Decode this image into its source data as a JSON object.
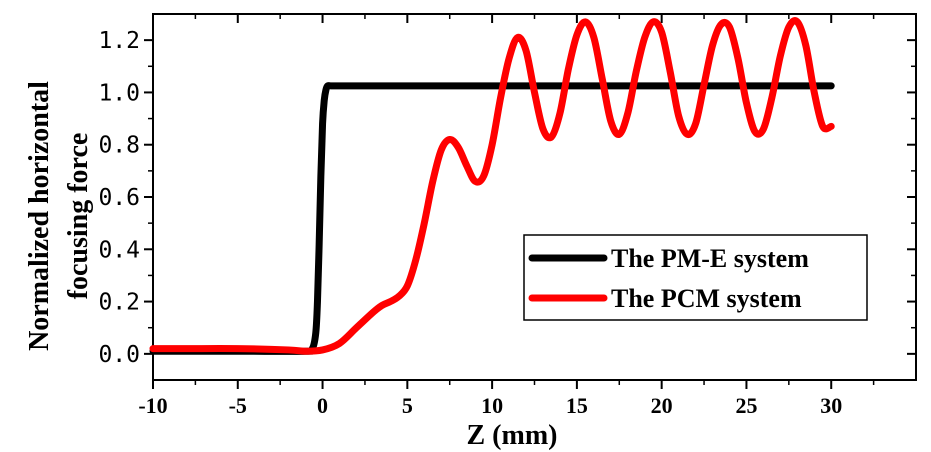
{
  "chart_data": {
    "type": "line",
    "title": "",
    "xlabel": "Z (mm)",
    "ylabel_lines": [
      "Normalized horizontal",
      "focusing force"
    ],
    "xlim": [
      -10,
      35
    ],
    "ylim": [
      -0.1,
      1.3
    ],
    "x_ticks": [
      -10,
      -5,
      0,
      5,
      10,
      15,
      20,
      25,
      30
    ],
    "x_tick_labels": [
      "-10",
      "-5",
      "0",
      "5",
      "10",
      "15",
      "20",
      "25",
      "30"
    ],
    "y_ticks": [
      0.0,
      0.2,
      0.4,
      0.6,
      0.8,
      1.0,
      1.2
    ],
    "y_tick_labels": [
      "0.0",
      "0.2",
      "0.4",
      "0.6",
      "0.8",
      "1.0",
      "1.2"
    ],
    "grid": false,
    "legend_position": "center-right",
    "series": [
      {
        "name": "The PM-E system",
        "color": "#000000",
        "x": [
          -10,
          -5,
          -1,
          -0.6,
          -0.4,
          -0.3,
          -0.2,
          -0.1,
          0,
          0.1,
          0.2,
          0.3,
          0.5,
          1,
          5,
          10,
          15,
          20,
          25,
          30
        ],
        "y": [
          0.01,
          0.01,
          0.01,
          0.02,
          0.08,
          0.2,
          0.42,
          0.68,
          0.88,
          0.97,
          1.01,
          1.025,
          1.025,
          1.025,
          1.025,
          1.025,
          1.025,
          1.025,
          1.025,
          1.025
        ]
      },
      {
        "name": "The PCM system",
        "color": "#ff0000",
        "x": [
          -10,
          -8,
          -5,
          -2,
          -1,
          0,
          1,
          2,
          3,
          3.5,
          4,
          4.5,
          5,
          5.5,
          6,
          6.5,
          7,
          7.5,
          8,
          8.5,
          9,
          9.5,
          10,
          10.5,
          11,
          11.5,
          12,
          12.5,
          13,
          13.5,
          14,
          14.5,
          15,
          15.5,
          16,
          16.5,
          17,
          17.5,
          18,
          18.5,
          19,
          19.5,
          20,
          20.5,
          21,
          21.5,
          22,
          22.5,
          23,
          23.5,
          24,
          24.5,
          25,
          25.5,
          26,
          26.5,
          27,
          27.5,
          28,
          28.5,
          29,
          29.5,
          30
        ],
        "y": [
          0.02,
          0.02,
          0.02,
          0.015,
          0.01,
          0.015,
          0.04,
          0.1,
          0.16,
          0.185,
          0.2,
          0.22,
          0.26,
          0.36,
          0.5,
          0.66,
          0.78,
          0.82,
          0.79,
          0.72,
          0.66,
          0.68,
          0.8,
          0.98,
          1.13,
          1.21,
          1.16,
          1.0,
          0.86,
          0.83,
          0.92,
          1.09,
          1.22,
          1.27,
          1.21,
          1.05,
          0.89,
          0.84,
          0.92,
          1.08,
          1.21,
          1.27,
          1.23,
          1.08,
          0.91,
          0.84,
          0.88,
          1.03,
          1.18,
          1.26,
          1.25,
          1.13,
          0.96,
          0.85,
          0.86,
          0.98,
          1.14,
          1.25,
          1.27,
          1.18,
          1.0,
          0.87,
          0.87
        ]
      }
    ]
  }
}
